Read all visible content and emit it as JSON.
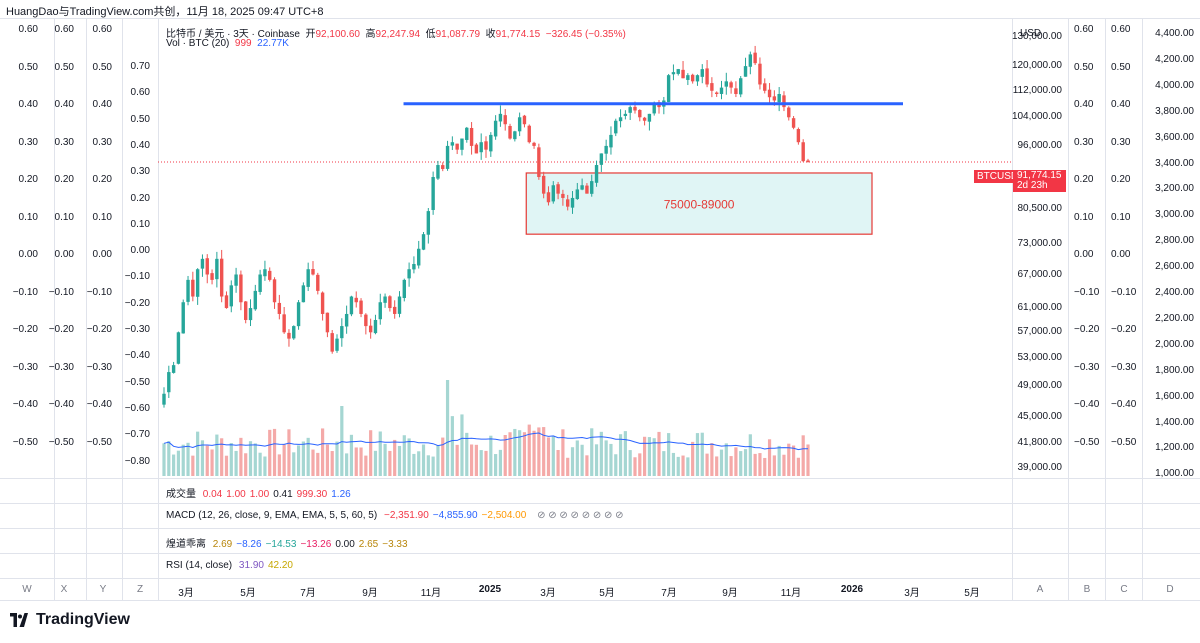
{
  "header": {
    "title": "HuangDao与TradingView.com共创，11月 18, 2025 09:47 UTC+8"
  },
  "legend": {
    "symbol": "比特币 / 美元 · 3天 · Coinbase",
    "open_label": "开",
    "open": "92,100.60",
    "high_label": "高",
    "high": "92,247.94",
    "low_label": "低",
    "low": "91,087.79",
    "close_label": "收",
    "close": "91,774.15",
    "change": "−326.45 (−0.35%)",
    "vol_label": "Vol · BTC (20)",
    "vol_value1": "999",
    "vol_value2": "22.77K"
  },
  "scales": {
    "oscillator_ticks": [
      "0.60",
      "0.50",
      "0.40",
      "0.30",
      "0.20",
      "0.10",
      "0.00",
      "−0.10",
      "−0.20",
      "−0.30",
      "−0.40",
      "−0.50"
    ],
    "inner_oscillator_ticks": [
      "0.70",
      "0.60",
      "0.50",
      "0.40",
      "0.30",
      "0.20",
      "0.10",
      "0.00",
      "−0.10",
      "−0.20",
      "−0.30",
      "−0.40",
      "−0.50",
      "−0.60",
      "−0.70",
      "−0.80"
    ],
    "price_unit": "USD",
    "price_ticks": [
      "130,000.00",
      "120,000.00",
      "112,000.00",
      "104,000.00",
      "96,000.00",
      "80,500.00",
      "73,000.00",
      "67,000.00",
      "61,000.00",
      "57,000.00",
      "53,000.00",
      "49,000.00",
      "45,000.00",
      "41,800.00",
      "39,000.00"
    ],
    "far_right_ticks": [
      "4,400.00",
      "4,200.00",
      "4,000.00",
      "3,800.00",
      "3,600.00",
      "3,400.00",
      "3,200.00",
      "3,000.00",
      "2,800.00",
      "2,600.00",
      "2,400.00",
      "2,200.00",
      "2,000.00",
      "1,800.00",
      "1,600.00",
      "1,400.00",
      "1,200.00",
      "1,000.00"
    ]
  },
  "price_tag": {
    "symbol": "BTCUSD",
    "price": "91,774.15",
    "countdown": "2d 23h"
  },
  "zone": {
    "label": "75000-89000",
    "low": 75000,
    "high": 89000
  },
  "resistance": {
    "price": 108000
  },
  "panes": {
    "volume_label": "成交量",
    "volume_values": [
      "0.04",
      "1.00",
      "1.00",
      "0.41",
      "999.30",
      "1.26"
    ],
    "macd_label": "MACD (12, 26, close, 9, EMA, EMA, 5, 5, 60, 5)",
    "macd_values": [
      "−2,351.90",
      "−4,855.90",
      "−2,504.00"
    ],
    "cross_label": "煌道乖离",
    "cross_values": [
      "2.69",
      "−8.26",
      "−14.53",
      "−13.26",
      "0.00",
      "2.65",
      "−3.33"
    ],
    "rsi_label": "RSI (14, close)",
    "rsi_values": [
      "31.90",
      "42.20"
    ]
  },
  "xaxis": {
    "labels": [
      "3月",
      "5月",
      "7月",
      "9月",
      "11月",
      "2025",
      "3月",
      "5月",
      "7月",
      "9月",
      "11月",
      "2026",
      "3月",
      "5月"
    ],
    "corner_letters": [
      "W",
      "X",
      "Y",
      "Z",
      "A",
      "B",
      "C",
      "D"
    ]
  },
  "brand": {
    "name": "TradingView"
  },
  "colors": {
    "up": "#26a69a",
    "down": "#ef5350",
    "resistance": "#2962ff",
    "zone_fill": "#e0f5f5",
    "zone_border": "#e53935",
    "volume_ma": "#2962ff"
  },
  "chart_data": {
    "type": "candlestick",
    "title": "比特币 / 美元 · 3天 · Coinbase",
    "ylabel": "USD",
    "x_range": [
      "2024-02",
      "2025-11-18"
    ],
    "ylim": [
      39000,
      135000
    ],
    "scale": "log",
    "grid": false,
    "series": [
      {
        "name": "BTCUSD",
        "closes_approx": [
          48000,
          51000,
          52000,
          57000,
          62000,
          66000,
          63000,
          68000,
          70000,
          67000,
          66000,
          70000,
          63000,
          61000,
          65000,
          67000,
          62000,
          59000,
          61000,
          64000,
          67000,
          68000,
          66000,
          62000,
          60000,
          57000,
          56000,
          58000,
          62000,
          65000,
          68000,
          67000,
          64000,
          60000,
          57000,
          54000,
          56000,
          58000,
          60000,
          63000,
          62000,
          60000,
          58000,
          57000,
          59000,
          62000,
          63000,
          61000,
          60000,
          63000,
          66000,
          68000,
          69000,
          72000,
          75000,
          80000,
          88000,
          91000,
          90000,
          96000,
          97000,
          95000,
          98000,
          101000,
          96000,
          94000,
          97000,
          95000,
          99000,
          103000,
          105000,
          102000,
          98000,
          100000,
          104000,
          102000,
          97000,
          96000,
          88000,
          84000,
          82000,
          86000,
          84000,
          83000,
          81000,
          83000,
          85000,
          86000,
          84000,
          87000,
          91000,
          94000,
          96000,
          99000,
          103000,
          104000,
          105000,
          107000,
          106000,
          104000,
          103000,
          105000,
          108000,
          107000,
          109000,
          117000,
          118000,
          119000,
          116000,
          117000,
          115000,
          117000,
          119000,
          114000,
          112000,
          111000,
          113000,
          115000,
          113000,
          111000,
          116000,
          120000,
          124000,
          121000,
          114000,
          112000,
          110000,
          109000,
          111000,
          107000,
          104000,
          101000,
          97000,
          92000,
          91774
        ]
      }
    ],
    "annotations": [
      {
        "type": "horizontal_line",
        "y": 108000,
        "color": "#2962ff"
      },
      {
        "type": "rectangle",
        "label": "75000-89000",
        "y_range": [
          75000,
          89000
        ]
      }
    ]
  }
}
